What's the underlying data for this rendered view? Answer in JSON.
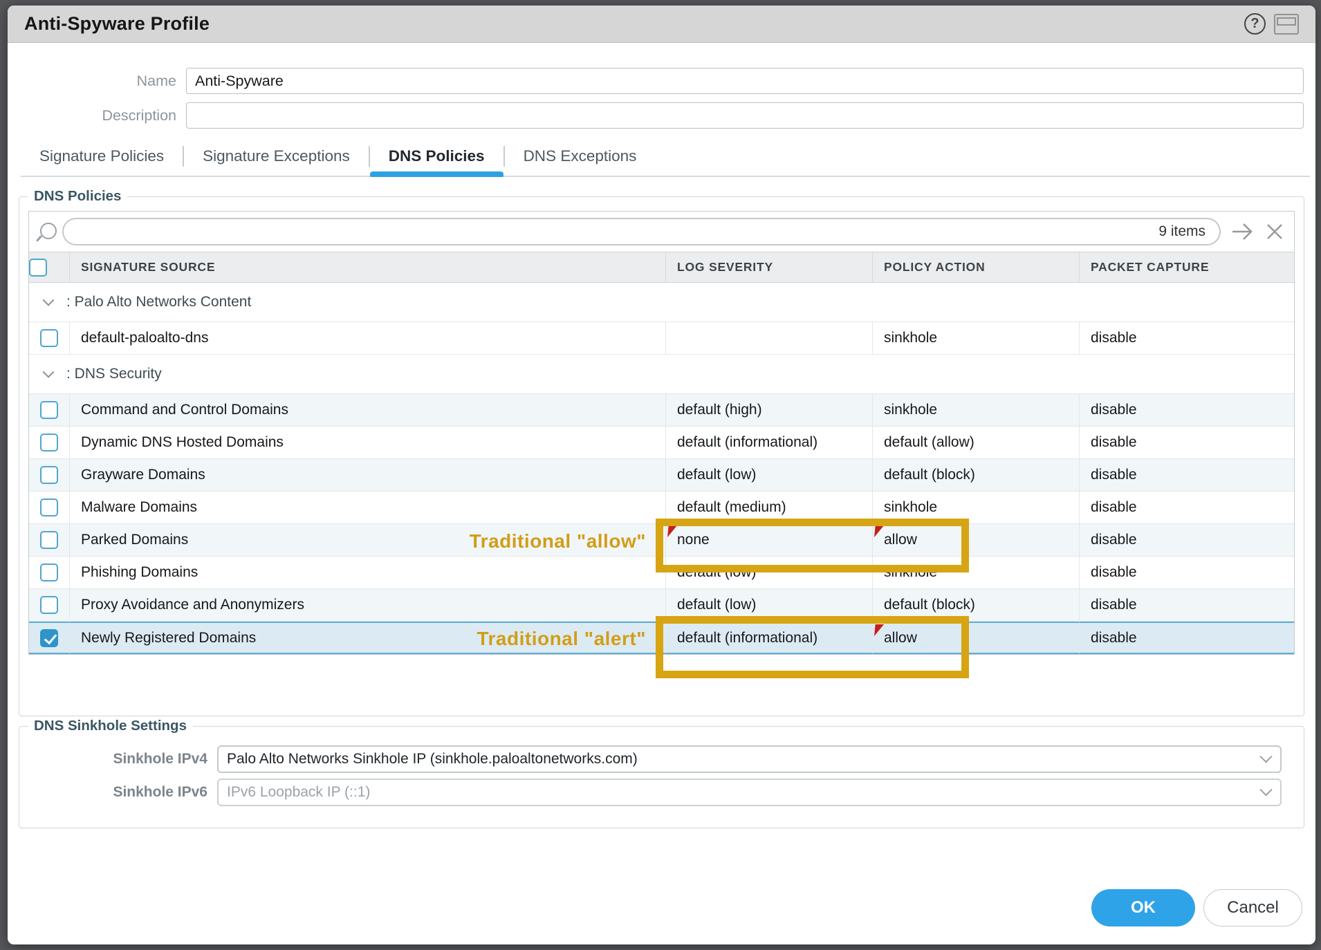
{
  "window": {
    "title": "Anti-Spyware Profile"
  },
  "form": {
    "name_label": "Name",
    "name_value": "Anti-Spyware",
    "description_label": "Description",
    "description_value": ""
  },
  "tabs": [
    {
      "label": "Signature Policies",
      "active": false
    },
    {
      "label": "Signature Exceptions",
      "active": false
    },
    {
      "label": "DNS Policies",
      "active": true
    },
    {
      "label": "DNS Exceptions",
      "active": false
    }
  ],
  "dns_policies": {
    "legend": "DNS Policies",
    "toolbar": {
      "search_value": "",
      "items_count": "9 items"
    },
    "table": {
      "columns": [
        "SIGNATURE SOURCE",
        "LOG SEVERITY",
        "POLICY ACTION",
        "PACKET CAPTURE"
      ],
      "groups": [
        {
          "label": ": Palo Alto Networks Content",
          "rows": [
            {
              "source": "default-paloalto-dns",
              "severity": "",
              "action": "sinkhole",
              "capture": "disable",
              "checked": false,
              "shaded": false,
              "selected": false
            }
          ]
        },
        {
          "label": ": DNS Security",
          "rows": [
            {
              "source": "Command and Control Domains",
              "severity": "default (high)",
              "action": "sinkhole",
              "capture": "disable",
              "shaded": true
            },
            {
              "source": "Dynamic DNS Hosted Domains",
              "severity": "default (informational)",
              "action": "default (allow)",
              "capture": "disable"
            },
            {
              "source": "Grayware Domains",
              "severity": "default (low)",
              "action": "default (block)",
              "capture": "disable",
              "shaded": true
            },
            {
              "source": "Malware Domains",
              "severity": "default (medium)",
              "action": "sinkhole",
              "capture": "disable"
            },
            {
              "source": "Parked Domains",
              "severity": "none",
              "action": "allow",
              "capture": "disable",
              "shaded": true,
              "severity_modified": true,
              "action_modified": true,
              "annotation": "allow"
            },
            {
              "source": "Phishing Domains",
              "severity": "default (low)",
              "action": "sinkhole",
              "capture": "disable"
            },
            {
              "source": "Proxy Avoidance and Anonymizers",
              "severity": "default (low)",
              "action": "default (block)",
              "capture": "disable",
              "shaded": true
            },
            {
              "source": "Newly Registered Domains",
              "severity": "default (informational)",
              "action": "allow",
              "capture": "disable",
              "selected": true,
              "checked": true,
              "action_modified": true,
              "annotation": "alert"
            }
          ]
        }
      ]
    },
    "annotations": {
      "allow": {
        "label": "Traditional \"allow\"",
        "extends_below": false
      },
      "alert": {
        "label": "Traditional \"alert\"",
        "extends_below": true
      }
    }
  },
  "sinkhole_settings": {
    "legend": "DNS Sinkhole Settings",
    "ipv4_label": "Sinkhole IPv4",
    "ipv4_value": "Palo Alto Networks Sinkhole IP (sinkhole.paloaltonetworks.com)",
    "ipv6_label": "Sinkhole IPv6",
    "ipv6_value": "IPv6 Loopback IP (::1)"
  },
  "buttons": {
    "ok": "OK",
    "cancel": "Cancel"
  },
  "accent_colors": {
    "primary_blue": "#2FA3E8",
    "tab_underline": "#2DA2E2",
    "selected_row_border": "#5CADD6",
    "checkbox_blue": "#4FA5CD",
    "annotation_orange": "#D7A413",
    "modified_flag_red": "#C42018",
    "titlebar_gray": "#D6D6D6"
  }
}
